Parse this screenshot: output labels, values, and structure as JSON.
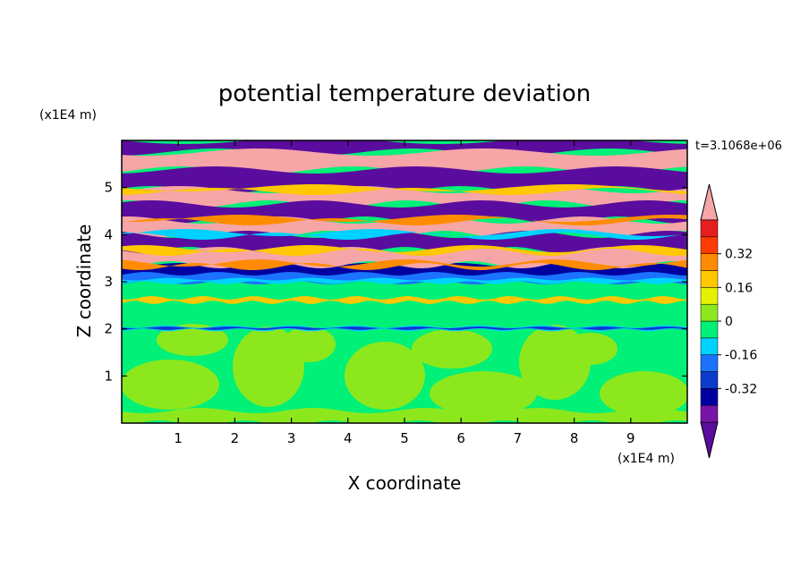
{
  "chart_data": {
    "type": "heatmap",
    "title": "potential temperature deviation",
    "xlabel": "X coordinate",
    "ylabel": "Z coordinate",
    "x_unit": "(x1E4 m)",
    "y_unit": "(x1E4 m)",
    "time_label": "t=3.1068e+06",
    "xlim": [
      0,
      10
    ],
    "ylim": [
      0,
      6
    ],
    "x_ticks": [
      1,
      2,
      3,
      4,
      5,
      6,
      7,
      8,
      9
    ],
    "y_ticks": [
      1,
      2,
      3,
      4,
      5
    ],
    "colorbar": {
      "levels": [
        -0.48,
        -0.4,
        -0.32,
        -0.24,
        -0.16,
        -0.08,
        0,
        0.08,
        0.16,
        0.24,
        0.32,
        0.4,
        0.48
      ],
      "colors": [
        "#5a0c9e",
        "#7814a8",
        "#0000a0",
        "#0c3ccc",
        "#1a72ff",
        "#00d2ff",
        "#00f078",
        "#8ce81c",
        "#e6f000",
        "#ffc800",
        "#ff8c00",
        "#ff3c00",
        "#e61e1e",
        "#f6a6a6"
      ],
      "labels": [
        "0.32",
        "0.16",
        "0",
        "-0.16",
        "-0.32"
      ],
      "label_values": [
        0.32,
        0.16,
        0,
        -0.16,
        -0.32
      ],
      "extend": "both"
    },
    "description_bands": [
      {
        "z_from": 0.0,
        "z_to": 2.0,
        "dominant_value": 0.0
      },
      {
        "z_from": 2.0,
        "z_to": 3.0,
        "dominant_value": 0.0
      },
      {
        "z_from": 3.0,
        "z_to": 3.4,
        "dominant_value": -0.4
      },
      {
        "z_from": 3.4,
        "z_to": 6.0,
        "dominant_value": 0.48
      }
    ]
  }
}
